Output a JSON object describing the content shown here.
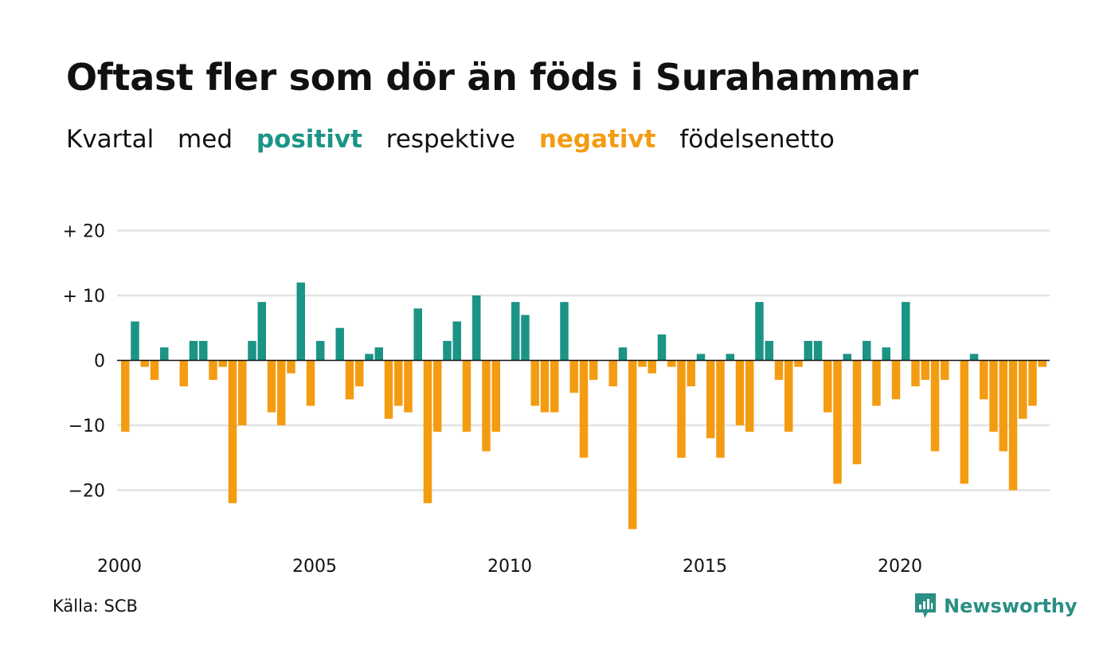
{
  "title": "Oftast fler som dör än föds i Surahammar",
  "subtitle": {
    "w1": "Kvartal",
    "w2": "med",
    "positive": "positivt",
    "w3": "respektive",
    "negative": "negativt",
    "w4": "födelsenetto"
  },
  "colors": {
    "positive": "#1b9486",
    "negative": "#f39c12",
    "grid": "#e2e2e2",
    "zero_line": "#111111"
  },
  "source": "Källa: SCB",
  "brand": {
    "name": "Newsworthy",
    "icon": "newsworthy-chart-bubble-icon"
  },
  "chart_data": {
    "type": "bar",
    "title": "Oftast fler som dör än föds i Surahammar",
    "xlabel": "",
    "ylabel": "",
    "x_start": "2000 Q1",
    "period": "quarter",
    "ylim": [
      -27,
      20
    ],
    "yticks": [
      {
        "value": 20,
        "label": "+ 20"
      },
      {
        "value": 10,
        "label": "+ 10"
      },
      {
        "value": 0,
        "label": "0"
      },
      {
        "value": -10,
        "label": "−10"
      },
      {
        "value": -20,
        "label": "−20"
      }
    ],
    "xticks": [
      "2000",
      "2005",
      "2010",
      "2015",
      "2020"
    ],
    "grid": true,
    "values": [
      -11,
      6,
      -1,
      -3,
      2,
      0,
      -4,
      3,
      3,
      -3,
      -1,
      -22,
      -10,
      3,
      9,
      -8,
      -10,
      -2,
      12,
      -7,
      3,
      0,
      5,
      -6,
      -4,
      1,
      2,
      -9,
      -7,
      -8,
      8,
      -22,
      -11,
      3,
      6,
      -11,
      10,
      -14,
      -11,
      0,
      9,
      7,
      -7,
      -8,
      -8,
      9,
      -5,
      -15,
      -3,
      0,
      -4,
      2,
      -26,
      -1,
      -2,
      4,
      -1,
      -15,
      -4,
      1,
      -12,
      -15,
      1,
      -10,
      -11,
      9,
      3,
      -3,
      -11,
      -1,
      3,
      3,
      -8,
      -19,
      1,
      -16,
      3,
      -7,
      2,
      -6,
      9,
      -4,
      -3,
      -14,
      -3,
      0,
      -19,
      1,
      -6,
      -11,
      -14,
      -20,
      -9,
      -7,
      -1
    ]
  }
}
